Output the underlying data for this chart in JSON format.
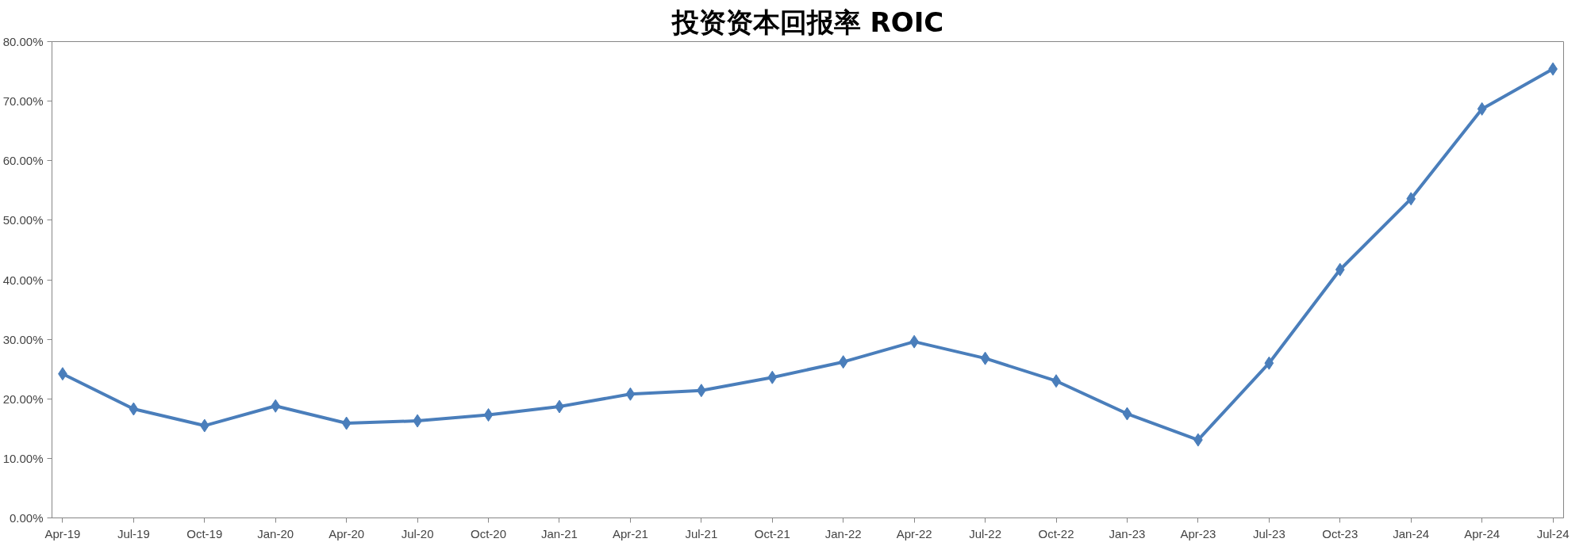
{
  "chart_data": {
    "type": "line",
    "title": "投资资本回报率 ROIC",
    "categories": [
      "Apr-19",
      "Jul-19",
      "Oct-19",
      "Jan-20",
      "Apr-20",
      "Jul-20",
      "Oct-20",
      "Jan-21",
      "Apr-21",
      "Jul-21",
      "Oct-21",
      "Jan-22",
      "Apr-22",
      "Jul-22",
      "Oct-22",
      "Jan-23",
      "Apr-23",
      "Jul-23",
      "Oct-23",
      "Jan-24",
      "Apr-24",
      "Jul-24"
    ],
    "series": [
      {
        "color": "#4a7ebb",
        "values": [
          24.2,
          18.3,
          15.5,
          18.8,
          15.9,
          16.3,
          17.3,
          18.7,
          20.8,
          21.4,
          23.6,
          26.2,
          29.6,
          26.8,
          23.0,
          17.5,
          13.1,
          26.0,
          41.7,
          53.6,
          68.7,
          75.4
        ]
      }
    ],
    "ylim": [
      0,
      80
    ],
    "yticks": [
      {
        "value": 0,
        "label": "0.00%"
      },
      {
        "value": 10,
        "label": "10.00%"
      },
      {
        "value": 20,
        "label": "20.00%"
      },
      {
        "value": 30,
        "label": "30.00%"
      },
      {
        "value": 40,
        "label": "40.00%"
      },
      {
        "value": 50,
        "label": "50.00%"
      },
      {
        "value": 60,
        "label": "60.00%"
      },
      {
        "value": 70,
        "label": "70.00%"
      },
      {
        "value": 80,
        "label": "80.00%"
      }
    ],
    "marker": "diamond",
    "line_style": "solid",
    "grid": false
  }
}
